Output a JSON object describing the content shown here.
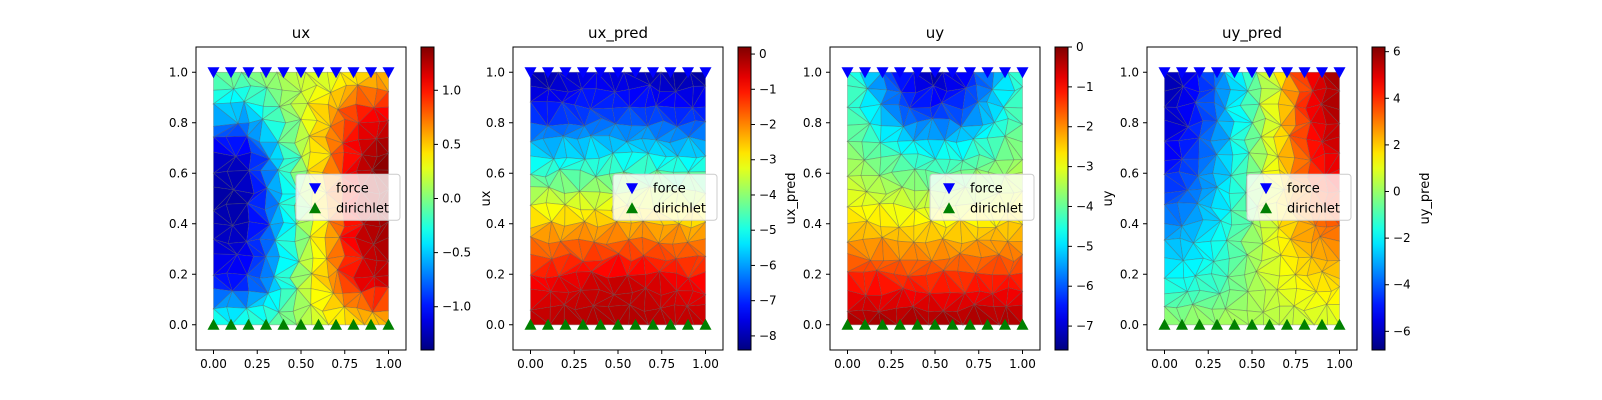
{
  "chart_data": [
    {
      "type": "heatmap",
      "title": "ux",
      "xlabel": "",
      "ylabel": "",
      "colorbar_label": "",
      "xlim": [
        -0.1,
        1.1
      ],
      "ylim": [
        -0.1,
        1.1
      ],
      "x_ticks": [
        0.0,
        0.25,
        0.5,
        0.75,
        1.0
      ],
      "x_tick_labels": [
        "0.00",
        "0.25",
        "0.50",
        "0.75",
        "1.00"
      ],
      "y_ticks": [
        0.0,
        0.2,
        0.4,
        0.6,
        0.8,
        1.0
      ],
      "y_tick_labels": [
        "0.0",
        "0.2",
        "0.4",
        "0.6",
        "0.8",
        "1.0"
      ],
      "colormap": "jet",
      "cbar_range": [
        -1.4,
        1.4
      ],
      "cbar_ticks": [
        -1.0,
        -0.5,
        0.0,
        0.5,
        1.0
      ],
      "cbar_tick_labels": [
        "−1.0",
        "−0.5",
        "0.0",
        "0.5",
        "1.0"
      ],
      "field_grid": [
        [
          0.0,
          0.0,
          0.1,
          0.2,
          0.2,
          0.4,
          0.5
        ],
        [
          -0.5,
          -0.6,
          -0.2,
          0.2,
          0.6,
          1.0,
          1.1
        ],
        [
          -1.2,
          -1.2,
          -0.6,
          0.1,
          0.7,
          1.2,
          1.4
        ],
        [
          -1.3,
          -1.3,
          -0.7,
          0.0,
          0.6,
          1.2,
          1.4
        ],
        [
          -1.2,
          -1.2,
          -0.7,
          0.0,
          0.6,
          1.2,
          1.3
        ],
        [
          -1.0,
          -1.0,
          -0.6,
          0.1,
          0.6,
          1.1,
          1.2
        ],
        [
          -0.2,
          -0.2,
          -0.1,
          0.1,
          0.3,
          0.4,
          0.5
        ]
      ],
      "legend": {
        "loc": "center right",
        "entries": [
          "force",
          "dirichlet"
        ]
      }
    },
    {
      "type": "heatmap",
      "title": "ux_pred",
      "xlabel": "",
      "ylabel": "ux",
      "colorbar_label": "ux_pred",
      "xlim": [
        -0.1,
        1.1
      ],
      "ylim": [
        -0.1,
        1.1
      ],
      "x_ticks": [
        0.0,
        0.25,
        0.5,
        0.75,
        1.0
      ],
      "x_tick_labels": [
        "0.00",
        "0.25",
        "0.50",
        "0.75",
        "1.00"
      ],
      "y_ticks": [
        0.0,
        0.2,
        0.4,
        0.6,
        0.8,
        1.0
      ],
      "y_tick_labels": [
        "0.0",
        "0.2",
        "0.4",
        "0.6",
        "0.8",
        "1.0"
      ],
      "colormap": "jet",
      "cbar_range": [
        -8.4,
        0.2
      ],
      "cbar_ticks": [
        -8,
        -7,
        -6,
        -5,
        -4,
        -3,
        -2,
        -1,
        0
      ],
      "cbar_tick_labels": [
        "−8",
        "−7",
        "−6",
        "−5",
        "−4",
        "−3",
        "−2",
        "−1",
        "0"
      ],
      "field_grid": [
        [
          -8.2,
          -8.0,
          -7.6,
          -7.8,
          -8.0,
          -8.2,
          -8.2
        ],
        [
          -7.0,
          -7.0,
          -6.8,
          -6.8,
          -6.8,
          -7.0,
          -7.0
        ],
        [
          -5.4,
          -5.4,
          -5.2,
          -5.2,
          -5.2,
          -5.4,
          -5.4
        ],
        [
          -3.5,
          -3.5,
          -3.5,
          -3.4,
          -3.4,
          -3.5,
          -3.5
        ],
        [
          -2.0,
          -1.9,
          -1.8,
          -1.8,
          -1.8,
          -1.9,
          -2.0
        ],
        [
          -0.9,
          -0.7,
          -0.5,
          -0.4,
          -0.5,
          -0.7,
          -0.9
        ],
        [
          -0.3,
          -0.2,
          -0.2,
          -0.2,
          -0.2,
          -0.3,
          -0.3
        ]
      ],
      "legend": {
        "loc": "center right",
        "entries": [
          "force",
          "dirichlet"
        ]
      }
    },
    {
      "type": "heatmap",
      "title": "uy",
      "xlabel": "",
      "ylabel": "uy",
      "colorbar_label": "",
      "xlim": [
        -0.1,
        1.1
      ],
      "ylim": [
        -0.1,
        1.1
      ],
      "x_ticks": [
        0.0,
        0.25,
        0.5,
        0.75,
        1.0
      ],
      "x_tick_labels": [
        "0.00",
        "0.25",
        "0.50",
        "0.75",
        "1.00"
      ],
      "y_ticks": [
        0.0,
        0.2,
        0.4,
        0.6,
        0.8,
        1.0
      ],
      "y_tick_labels": [
        "0.0",
        "0.2",
        "0.4",
        "0.6",
        "0.8",
        "1.0"
      ],
      "colormap": "jet",
      "cbar_range": [
        -7.6,
        0.0
      ],
      "cbar_ticks": [
        -7,
        -6,
        -5,
        -4,
        -3,
        -2,
        -1,
        0
      ],
      "cbar_tick_labels": [
        "−7",
        "−6",
        "−5",
        "−4",
        "−3",
        "−2",
        "−1",
        "0"
      ],
      "field_grid": [
        [
          -4.0,
          -5.6,
          -6.8,
          -7.4,
          -6.8,
          -5.6,
          -4.2
        ],
        [
          -4.0,
          -5.0,
          -6.0,
          -6.2,
          -6.0,
          -5.0,
          -4.0
        ],
        [
          -3.6,
          -4.0,
          -4.4,
          -4.6,
          -4.4,
          -4.0,
          -3.6
        ],
        [
          -3.0,
          -3.2,
          -3.3,
          -3.4,
          -3.3,
          -3.2,
          -3.0
        ],
        [
          -2.2,
          -2.2,
          -2.3,
          -2.3,
          -2.3,
          -2.2,
          -2.2
        ],
        [
          -1.1,
          -1.1,
          -1.2,
          -1.2,
          -1.2,
          -1.1,
          -1.1
        ],
        [
          -0.3,
          -0.2,
          -0.2,
          -0.2,
          -0.2,
          -0.2,
          -0.3
        ]
      ],
      "legend": {
        "loc": "center right",
        "entries": [
          "force",
          "dirichlet"
        ]
      }
    },
    {
      "type": "heatmap",
      "title": "uy_pred",
      "xlabel": "",
      "ylabel": "",
      "colorbar_label": "uy_pred",
      "xlim": [
        -0.1,
        1.1
      ],
      "ylim": [
        -0.1,
        1.1
      ],
      "x_ticks": [
        0.0,
        0.25,
        0.5,
        0.75,
        1.0
      ],
      "x_tick_labels": [
        "0.00",
        "0.25",
        "0.50",
        "0.75",
        "1.00"
      ],
      "y_ticks": [
        0.0,
        0.2,
        0.4,
        0.6,
        0.8,
        1.0
      ],
      "y_tick_labels": [
        "0.0",
        "0.2",
        "0.4",
        "0.6",
        "0.8",
        "1.0"
      ],
      "colormap": "jet",
      "cbar_range": [
        -6.8,
        6.2
      ],
      "cbar_ticks": [
        -6,
        -4,
        -2,
        0,
        2,
        4,
        6
      ],
      "cbar_tick_labels": [
        "−6",
        "−4",
        "−2",
        "0",
        "2",
        "4",
        "6"
      ],
      "field_grid": [
        [
          -6.4,
          -5.2,
          -3.4,
          -1.0,
          1.6,
          4.6,
          6.0
        ],
        [
          -6.2,
          -5.0,
          -3.2,
          -0.8,
          1.8,
          4.6,
          5.8
        ],
        [
          -5.4,
          -4.4,
          -2.8,
          -0.5,
          1.8,
          4.2,
          5.2
        ],
        [
          -4.4,
          -3.6,
          -2.2,
          -0.3,
          1.6,
          3.4,
          4.2
        ],
        [
          -3.0,
          -2.6,
          -1.6,
          0.0,
          1.4,
          2.6,
          3.0
        ],
        [
          -1.8,
          -1.6,
          -1.0,
          0.1,
          1.0,
          1.6,
          1.8
        ],
        [
          0.1,
          0.2,
          0.3,
          0.3,
          0.4,
          0.6,
          0.8
        ]
      ],
      "legend": {
        "loc": "center right",
        "entries": [
          "force",
          "dirichlet"
        ]
      }
    }
  ],
  "markers": {
    "force": {
      "label": "force",
      "y": 1.0,
      "shape": "triangle-down",
      "color": "#0000ff",
      "x": [
        0.0,
        0.1,
        0.2,
        0.3,
        0.4,
        0.5,
        0.6,
        0.7,
        0.8,
        0.9,
        1.0
      ]
    },
    "dirichlet": {
      "label": "dirichlet",
      "y": 0.0,
      "shape": "triangle-up",
      "color": "#008000",
      "x": [
        0.0,
        0.1,
        0.2,
        0.3,
        0.4,
        0.5,
        0.6,
        0.7,
        0.8,
        0.9,
        1.0
      ]
    }
  },
  "mesh_color": "#555555"
}
